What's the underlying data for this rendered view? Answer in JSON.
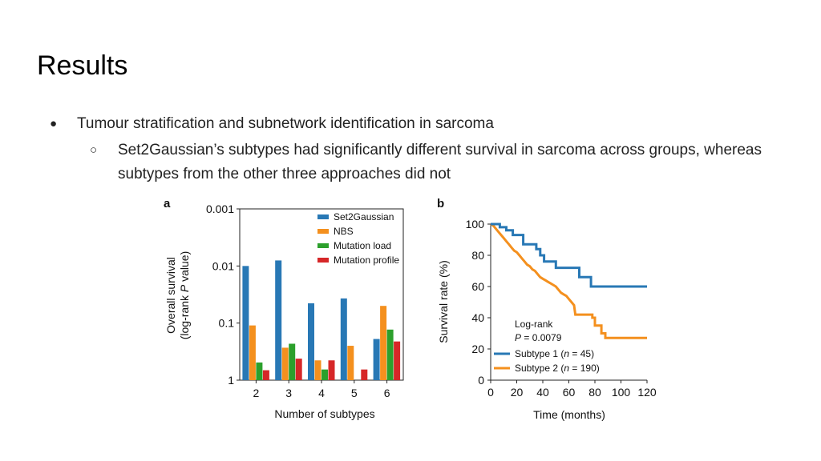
{
  "slide": {
    "title": "Results",
    "bullet": {
      "glyph": "●",
      "text": "Tumour stratification and subnetwork identification in sarcoma",
      "sub_glyph": "○",
      "sub_text": "Set2Gaussian’s subtypes had significantly different survival in sarcoma across groups, whereas subtypes from the other three approaches did not"
    }
  },
  "chart_data": [
    {
      "panel_label": "a",
      "type": "bar",
      "scale": "log",
      "ylabel_line1": "Overall survival",
      "ylabel_line2_pre": "(log-rank ",
      "ylabel_line2_italic": "P",
      "ylabel_line2_post": " value)",
      "xlabel": "Number of subtypes",
      "categories": [
        "2",
        "3",
        "4",
        "5",
        "6"
      ],
      "yticks": [
        {
          "value": 0.001,
          "label": "0.001"
        },
        {
          "value": 0.01,
          "label": "0.01"
        },
        {
          "value": 0.1,
          "label": "0.1"
        },
        {
          "value": 1,
          "label": "1"
        }
      ],
      "ylim": [
        1,
        0.001
      ],
      "legend_position": "top-right",
      "series": [
        {
          "name": "Set2Gaussian",
          "color": "#2878b5",
          "values": [
            0.01,
            0.008,
            0.045,
            0.037,
            0.19
          ]
        },
        {
          "name": "NBS",
          "color": "#f4901e",
          "values": [
            0.11,
            0.27,
            0.45,
            0.25,
            0.05
          ]
        },
        {
          "name": "Mutation load",
          "color": "#2ca02c",
          "values": [
            0.49,
            0.23,
            0.65,
            null,
            0.13
          ]
        },
        {
          "name": "Mutation profile",
          "color": "#d62728",
          "values": [
            0.67,
            0.42,
            0.45,
            0.65,
            0.21
          ]
        }
      ]
    },
    {
      "panel_label": "b",
      "type": "line",
      "ylabel": "Survival rate (%)",
      "xlabel": "Time (months)",
      "xlim": [
        0,
        120
      ],
      "ylim": [
        0,
        100
      ],
      "xticks": [
        0,
        20,
        40,
        60,
        80,
        100,
        120
      ],
      "yticks": [
        0,
        20,
        40,
        60,
        80,
        100
      ],
      "annotation_line1": "Log-rank",
      "annotation_p_italic": "P",
      "annotation_p_value": " = 0.0079",
      "legend_position": "bottom-left",
      "series": [
        {
          "name": "Subtype 1",
          "n_label": "n",
          "n_value": " = 45",
          "color": "#2878b5",
          "points": [
            [
              0,
              100
            ],
            [
              7,
              100
            ],
            [
              7,
              98
            ],
            [
              12,
              98
            ],
            [
              12,
              96
            ],
            [
              17,
              96
            ],
            [
              17,
              93
            ],
            [
              25,
              93
            ],
            [
              25,
              87
            ],
            [
              35,
              87
            ],
            [
              35,
              84
            ],
            [
              38,
              84
            ],
            [
              38,
              80
            ],
            [
              41,
              80
            ],
            [
              41,
              76
            ],
            [
              50,
              76
            ],
            [
              50,
              72
            ],
            [
              68,
              72
            ],
            [
              68,
              66
            ],
            [
              77,
              66
            ],
            [
              77,
              60
            ],
            [
              120,
              60
            ]
          ]
        },
        {
          "name": "Subtype 2",
          "n_label": "n",
          "n_value": " = 190",
          "color": "#f4901e",
          "points": [
            [
              0,
              100
            ],
            [
              2,
              99
            ],
            [
              4,
              97
            ],
            [
              6,
              95
            ],
            [
              8,
              93
            ],
            [
              10,
              91
            ],
            [
              12,
              89
            ],
            [
              14,
              87
            ],
            [
              16,
              85
            ],
            [
              18,
              83
            ],
            [
              20,
              82
            ],
            [
              22,
              80
            ],
            [
              24,
              78
            ],
            [
              26,
              76
            ],
            [
              28,
              74
            ],
            [
              30,
              73
            ],
            [
              32,
              71
            ],
            [
              34,
              70
            ],
            [
              36,
              68
            ],
            [
              38,
              66
            ],
            [
              40,
              65
            ],
            [
              42,
              64
            ],
            [
              44,
              63
            ],
            [
              46,
              62
            ],
            [
              48,
              61
            ],
            [
              50,
              60
            ],
            [
              52,
              58
            ],
            [
              54,
              56
            ],
            [
              56,
              55
            ],
            [
              58,
              54
            ],
            [
              60,
              52
            ],
            [
              62,
              50
            ],
            [
              64,
              48
            ],
            [
              65,
              42
            ],
            [
              78,
              42
            ],
            [
              78,
              40
            ],
            [
              80,
              40
            ],
            [
              80,
              35
            ],
            [
              85,
              35
            ],
            [
              85,
              30
            ],
            [
              88,
              30
            ],
            [
              88,
              27
            ],
            [
              120,
              27
            ]
          ]
        }
      ]
    }
  ]
}
